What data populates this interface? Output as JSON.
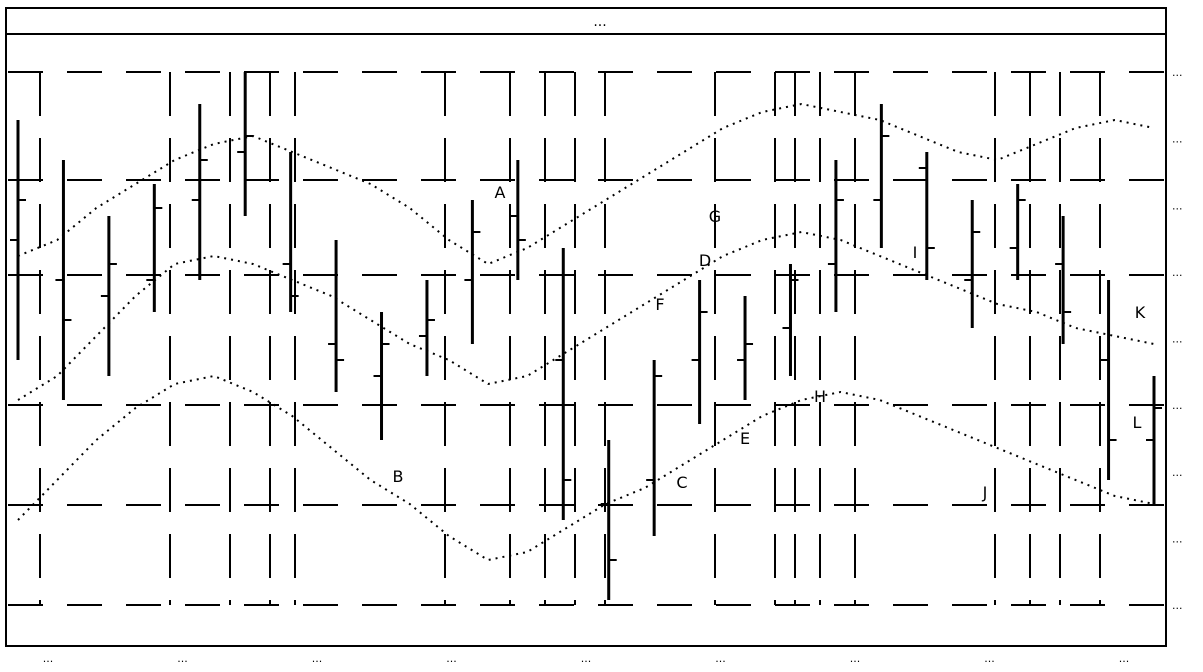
{
  "chart_data": {
    "type": "line",
    "title": "",
    "title_visible": "...",
    "subtype": "ohlc-bars-with-bands",
    "bands": {
      "upper": [
        73,
        75,
        79,
        82,
        85,
        87,
        88,
        86,
        84,
        82,
        79,
        75,
        72,
        74,
        77,
        80,
        83,
        86,
        89,
        91,
        92,
        91,
        90,
        88,
        86,
        85,
        87,
        89,
        90,
        89
      ],
      "middle": [
        55,
        58,
        63,
        68,
        72,
        73,
        72,
        70,
        68,
        65,
        62,
        60,
        57,
        58,
        61,
        64,
        67,
        70,
        73,
        75,
        76,
        75,
        73,
        71,
        69,
        67,
        66,
        64,
        63,
        62
      ],
      "lower": [
        40,
        45,
        50,
        54,
        57,
        58,
        56,
        53,
        49,
        45,
        42,
        38,
        35,
        36,
        39,
        42,
        44,
        47,
        50,
        53,
        55,
        56,
        55,
        53,
        51,
        49,
        47,
        45,
        43,
        42
      ]
    },
    "bars": [
      {
        "high": 90,
        "low": 60,
        "open": 75,
        "close": 80
      },
      {
        "high": 85,
        "low": 55,
        "open": 70,
        "close": 65
      },
      {
        "high": 78,
        "low": 58,
        "open": 68,
        "close": 72
      },
      {
        "high": 82,
        "low": 66,
        "open": 70,
        "close": 79
      },
      {
        "high": 92,
        "low": 70,
        "open": 80,
        "close": 85
      },
      {
        "high": 96,
        "low": 78,
        "open": 86,
        "close": 88
      },
      {
        "high": 86,
        "low": 66,
        "open": 72,
        "close": 68
      },
      {
        "high": 75,
        "low": 56,
        "open": 62,
        "close": 60
      },
      {
        "high": 66,
        "low": 50,
        "open": 58,
        "close": 62
      },
      {
        "high": 70,
        "low": 58,
        "open": 63,
        "close": 65
      },
      {
        "high": 80,
        "low": 62,
        "open": 70,
        "close": 76
      },
      {
        "high": 85,
        "low": 70,
        "open": 78,
        "close": 75
      },
      {
        "high": 74,
        "low": 40,
        "open": 60,
        "close": 45
      },
      {
        "high": 50,
        "low": 30,
        "open": 42,
        "close": 35
      },
      {
        "high": 60,
        "low": 38,
        "open": 45,
        "close": 58
      },
      {
        "high": 70,
        "low": 52,
        "open": 60,
        "close": 66
      },
      {
        "high": 68,
        "low": 55,
        "open": 60,
        "close": 62
      },
      {
        "high": 72,
        "low": 58,
        "open": 64,
        "close": 70
      },
      {
        "high": 85,
        "low": 66,
        "open": 72,
        "close": 80
      },
      {
        "high": 92,
        "low": 74,
        "open": 80,
        "close": 88
      },
      {
        "high": 86,
        "low": 70,
        "open": 84,
        "close": 74
      },
      {
        "high": 80,
        "low": 64,
        "open": 70,
        "close": 76
      },
      {
        "high": 82,
        "low": 70,
        "open": 74,
        "close": 80
      },
      {
        "high": 78,
        "low": 62,
        "open": 72,
        "close": 66
      },
      {
        "high": 70,
        "low": 45,
        "open": 60,
        "close": 50
      },
      {
        "high": 58,
        "low": 42,
        "open": 50,
        "close": 54
      }
    ],
    "annotations": [
      "A",
      "B",
      "C",
      "D",
      "E",
      "F",
      "G",
      "H",
      "I",
      "J",
      "K",
      "L"
    ],
    "x_ticks": [
      "...",
      "...",
      "...",
      "...",
      "...",
      "...",
      "...",
      "...",
      "..."
    ],
    "y_ticks": [
      "...",
      "...",
      "...",
      "...",
      "...",
      "...",
      "...",
      "...",
      "..."
    ],
    "grid": true
  }
}
